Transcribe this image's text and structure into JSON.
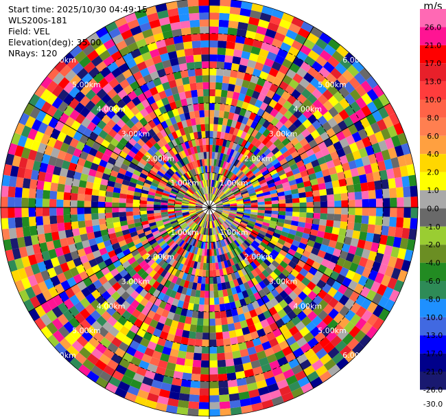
{
  "info": {
    "start_time": "Start time: 2025/10/30 04:49:15",
    "instrument": "WLS200s-181",
    "field": "Field: VEL",
    "elevation": "Elevation(deg): 35.00",
    "nrays": "NRays: 120"
  },
  "colorbar": {
    "unit": "m/s",
    "ticks": [
      "26.0",
      "21.0",
      "17.0",
      "13.0",
      "10.0",
      "8.0",
      "6.0",
      "4.0",
      "2.0",
      "1.0",
      "0.0",
      "-1.0",
      "-2.0",
      "-4.0",
      "-6.0",
      "-8.0",
      "-10.0",
      "-13.0",
      "-17.0",
      "-21.0",
      "-26.0",
      "-30.0"
    ],
    "colors": [
      "#ff69b4",
      "#ff1493",
      "#ff0000",
      "#e8202a",
      "#ff3c3c",
      "#ff6347",
      "#ff7f50",
      "#ffa040",
      "#ffd700",
      "#ffff00",
      "#a9a9a9",
      "#696969",
      "#9acd32",
      "#6b8e23",
      "#228b22",
      "#2e8b57",
      "#1e90ff",
      "#4169e1",
      "#0000ff",
      "#00008b",
      "#191970"
    ]
  },
  "chart_data": {
    "type": "ppi",
    "field": "VEL",
    "unit": "m/s",
    "elevation_deg": 35.0,
    "n_rays": 120,
    "max_range_km": 6.0,
    "range_ring_labels": [
      "1.00km",
      "2.00km",
      "3.00km",
      "4.00km",
      "5.00km",
      "6.00km"
    ],
    "note_values": "dense noisy velocity field; values span -30 to 26 m/s across all colorbar levels"
  }
}
